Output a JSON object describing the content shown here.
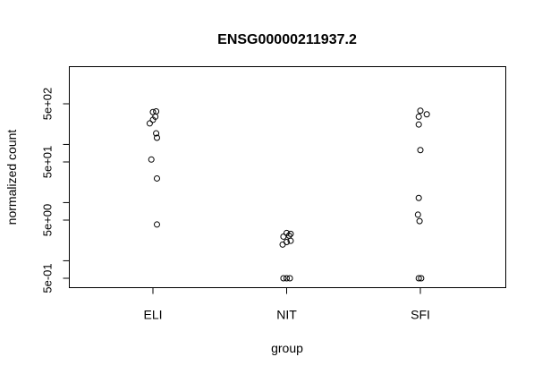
{
  "chart_data": {
    "type": "scatter",
    "title": "ENSG00000211937.2",
    "xlabel": "group",
    "ylabel": "normalized count",
    "categories": [
      "ELI",
      "NIT",
      "SFI"
    ],
    "y_scale": "log10",
    "ylim": [
      0.5,
      400
    ],
    "y_major_ticks": [
      {
        "value": 0.5,
        "label": "5e-01"
      },
      {
        "value": 5,
        "label": "5e+00"
      },
      {
        "value": 50,
        "label": "5e+01"
      },
      {
        "value": 500,
        "label": "5e+02"
      }
    ],
    "y_minor_ticks": [
      1,
      10,
      100
    ],
    "grid": false,
    "legend": "none",
    "marker": "open-circle",
    "colors": {
      "points": "#000000",
      "frame": "#000000",
      "background": "#ffffff"
    },
    "series": [
      {
        "category": "ELI",
        "points": [
          {
            "jitter": 0.0,
            "y": 360
          },
          {
            "jitter": 0.04,
            "y": 370
          },
          {
            "jitter": 0.03,
            "y": 300
          },
          {
            "jitter": 0.0,
            "y": 265
          },
          {
            "jitter": -0.04,
            "y": 230
          },
          {
            "jitter": 0.04,
            "y": 155
          },
          {
            "jitter": 0.05,
            "y": 130
          },
          {
            "jitter": -0.02,
            "y": 55
          },
          {
            "jitter": 0.05,
            "y": 26
          },
          {
            "jitter": 0.05,
            "y": 4.2
          }
        ]
      },
      {
        "category": "NIT",
        "points": [
          {
            "jitter": 0.0,
            "y": 3.0
          },
          {
            "jitter": 0.05,
            "y": 2.9
          },
          {
            "jitter": 0.03,
            "y": 2.7
          },
          {
            "jitter": -0.04,
            "y": 2.6
          },
          {
            "jitter": 0.05,
            "y": 2.2
          },
          {
            "jitter": 0.0,
            "y": 2.1
          },
          {
            "jitter": -0.05,
            "y": 1.9
          },
          {
            "jitter": -0.04,
            "y": 0.5
          },
          {
            "jitter": 0.0,
            "y": 0.5
          },
          {
            "jitter": 0.04,
            "y": 0.5
          }
        ]
      },
      {
        "category": "SFI",
        "points": [
          {
            "jitter": 0.0,
            "y": 380
          },
          {
            "jitter": 0.08,
            "y": 330
          },
          {
            "jitter": -0.02,
            "y": 300
          },
          {
            "jitter": -0.02,
            "y": 220
          },
          {
            "jitter": 0.0,
            "y": 80
          },
          {
            "jitter": -0.02,
            "y": 12
          },
          {
            "jitter": -0.03,
            "y": 6.2
          },
          {
            "jitter": -0.01,
            "y": 4.8
          },
          {
            "jitter": -0.02,
            "y": 0.5
          },
          {
            "jitter": 0.01,
            "y": 0.5
          }
        ]
      }
    ]
  }
}
